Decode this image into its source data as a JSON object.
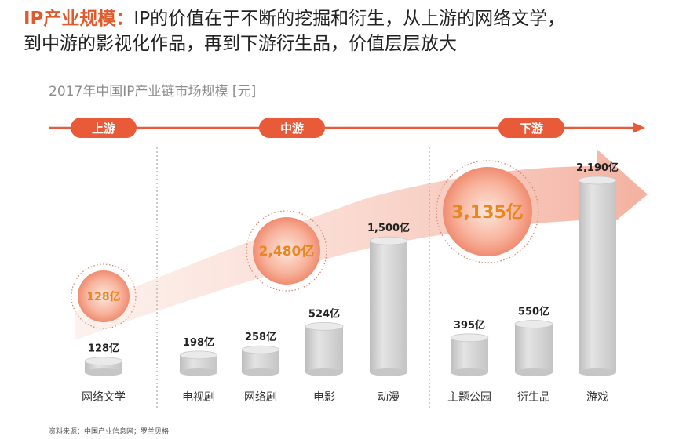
{
  "header": {
    "highlight": "IP产业规模：",
    "line1": "IP的价值在于不断的挖掘和衍生，从上游的网络文学，",
    "line2": "到中游的影视化作品，再到下游衍生品，价值层层放大"
  },
  "subtitle": "2017年中国IP产业链市场规模 [元]",
  "source": "资料来源：中国产业信息网；罗兰贝格",
  "colors": {
    "accent": "#e85a38",
    "bubble_text": "#e8861f",
    "bar": "#d0d0d0",
    "bar_top": "#eaeaea",
    "label": "#222222"
  },
  "chart_data": {
    "type": "bar",
    "unit": "亿",
    "stages": [
      {
        "name": "上游",
        "total_label": "128亿",
        "total": 128,
        "categories": [
          "网络文学"
        ]
      },
      {
        "name": "中游",
        "total_label": "2,480亿",
        "total": 2480,
        "categories": [
          "电视剧",
          "网络剧",
          "电影",
          "动漫"
        ]
      },
      {
        "name": "下游",
        "total_label": "3,135亿",
        "total": 3135,
        "categories": [
          "主题公园",
          "衍生品",
          "游戏"
        ]
      }
    ],
    "categories": [
      "网络文学",
      "电视剧",
      "网络剧",
      "电影",
      "动漫",
      "主题公园",
      "衍生品",
      "游戏"
    ],
    "values": [
      128,
      198,
      258,
      524,
      1500,
      395,
      550,
      2190
    ],
    "value_labels": [
      "128亿",
      "198亿",
      "258亿",
      "524亿",
      "1,500亿",
      "395亿",
      "550亿",
      "2,190亿"
    ]
  }
}
